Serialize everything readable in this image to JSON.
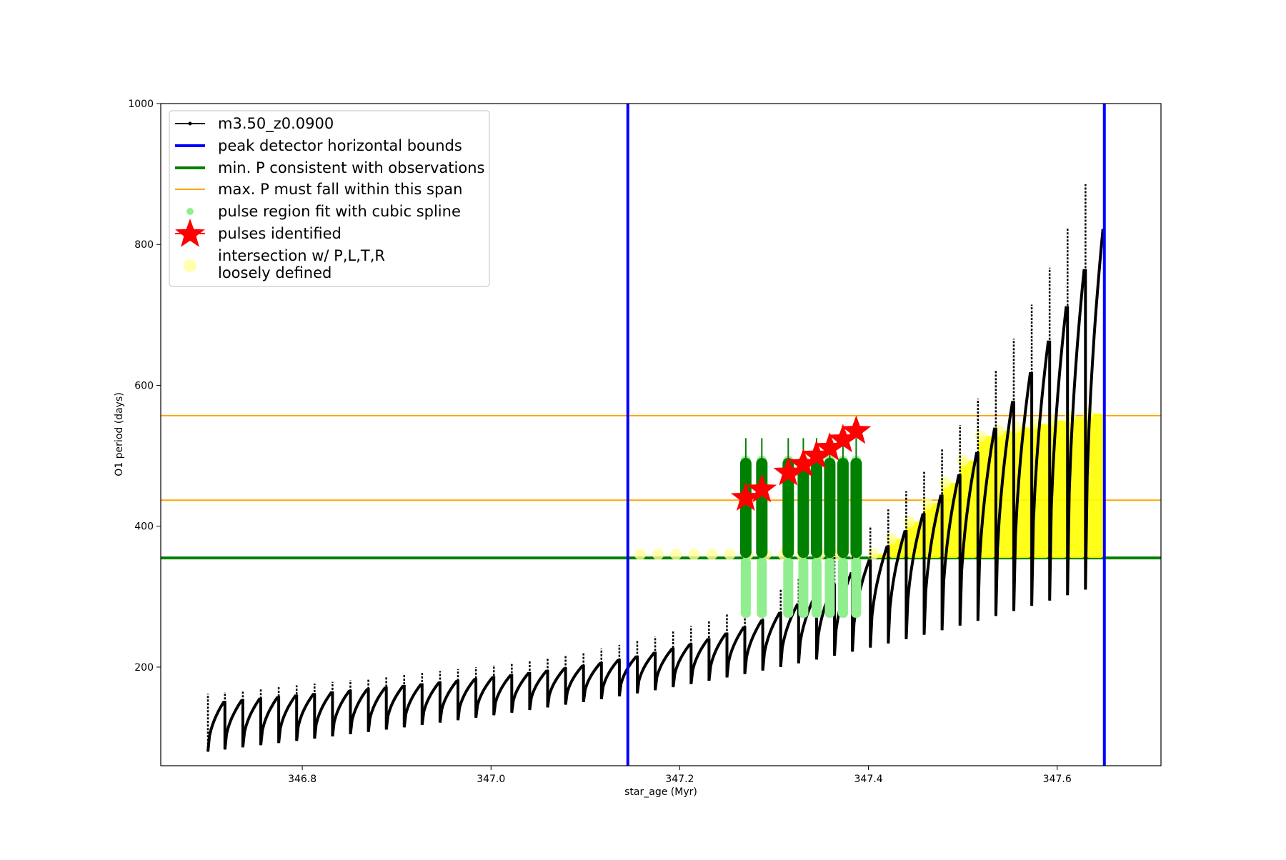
{
  "chart_data": {
    "type": "scatter",
    "title": "",
    "xlabel": "star_age (Myr)",
    "ylabel": "O1 period (days)",
    "xlim": [
      346.65,
      347.71
    ],
    "ylim": [
      60,
      1000
    ],
    "xticks": [
      "346.8",
      "347.0",
      "347.2",
      "347.4",
      "347.6"
    ],
    "yticks": [
      "200",
      "400",
      "600",
      "800",
      "1000"
    ],
    "legend_position": "top-left",
    "legend": [
      {
        "label": "m3.50_z0.0900",
        "kind": "line-marker",
        "color": "#000000"
      },
      {
        "label": "peak detector horizontal bounds",
        "kind": "line",
        "color": "#0000ff"
      },
      {
        "label": "min. P consistent with observations",
        "kind": "line",
        "color": "#008000"
      },
      {
        "label": "max. P must fall within this span",
        "kind": "thin-line",
        "color": "#ffa500"
      },
      {
        "label": "pulse region fit with cubic spline",
        "kind": "dot",
        "color": "#90ee90"
      },
      {
        "label": "pulses identified",
        "kind": "star",
        "color": "#ff0000"
      },
      {
        "label": "intersection w/ P,L,T,R\nloosely defined",
        "kind": "big-dot",
        "color": "#ffff99"
      }
    ],
    "reference_lines": {
      "peak_detector_bounds_x": [
        347.145,
        347.65
      ],
      "min_period_y": 355,
      "max_period_span_y": [
        437,
        557
      ]
    },
    "track": {
      "name": "m3.50_z0.0900",
      "x_start": 346.7,
      "x_end": 347.65,
      "pulse_count": 50,
      "pulse_peaks_x": [
        346.7,
        346.718,
        346.737,
        346.756,
        346.775,
        346.794,
        346.813,
        346.832,
        346.851,
        346.87,
        346.889,
        346.908,
        346.927,
        346.946,
        346.965,
        346.984,
        347.003,
        347.022,
        347.041,
        347.06,
        347.079,
        347.098,
        347.117,
        347.136,
        347.155,
        347.174,
        347.193,
        347.212,
        347.231,
        347.25,
        347.269,
        347.288,
        347.307,
        347.326,
        347.345,
        347.364,
        347.383,
        347.402,
        347.421,
        347.44,
        347.459,
        347.478,
        347.497,
        347.516,
        347.535,
        347.554,
        347.573,
        347.592,
        347.611,
        347.63
      ]
    },
    "pulses_identified": [
      {
        "x": 347.27,
        "y": 440
      },
      {
        "x": 347.287,
        "y": 452
      },
      {
        "x": 347.315,
        "y": 476
      },
      {
        "x": 347.331,
        "y": 488
      },
      {
        "x": 347.345,
        "y": 500
      },
      {
        "x": 347.359,
        "y": 511
      },
      {
        "x": 347.373,
        "y": 523
      },
      {
        "x": 347.387,
        "y": 535
      }
    ],
    "spline_regions_x": [
      347.27,
      347.287,
      347.315,
      347.331,
      347.345,
      347.359,
      347.373,
      347.387
    ]
  }
}
